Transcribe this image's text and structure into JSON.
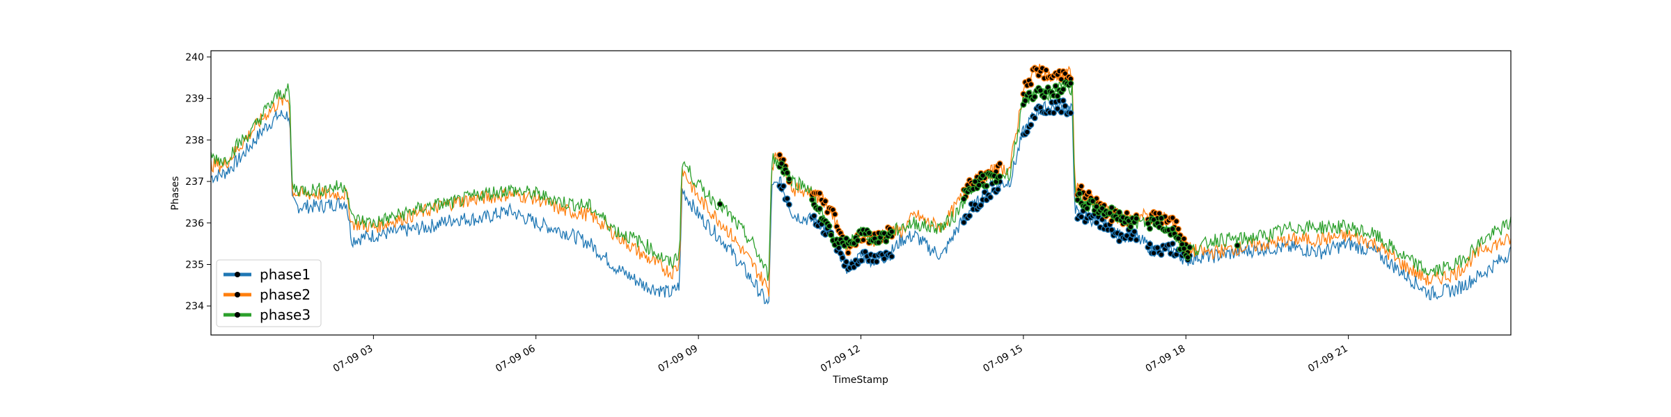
{
  "chart_data": {
    "type": "line",
    "title": "",
    "xlabel": "TimeStamp",
    "ylabel": "Phases",
    "x_unit": "hours since 07-09 00:00",
    "xlim": [
      0,
      24
    ],
    "ylim": [
      233.3,
      240.15
    ],
    "grid": false,
    "legend_position": "lower-left",
    "x_ticks": [
      {
        "x": 3,
        "label": "07-09 03"
      },
      {
        "x": 6,
        "label": "07-09 06"
      },
      {
        "x": 9,
        "label": "07-09 09"
      },
      {
        "x": 12,
        "label": "07-09 12"
      },
      {
        "x": 15,
        "label": "07-09 15"
      },
      {
        "x": 18,
        "label": "07-09 18"
      },
      {
        "x": 21,
        "label": "07-09 21"
      }
    ],
    "y_ticks": [
      234,
      235,
      236,
      237,
      238,
      239,
      240
    ],
    "x": [
      0,
      0.25,
      0.5,
      0.75,
      1,
      1.25,
      1.45,
      1.5,
      1.6,
      2,
      2.5,
      2.6,
      3,
      3.5,
      4,
      4.5,
      5,
      5.5,
      6,
      6.5,
      7,
      7.5,
      8,
      8.5,
      8.65,
      8.7,
      9,
      9.5,
      10,
      10.3,
      10.35,
      10.5,
      10.75,
      11,
      11.25,
      11.5,
      11.75,
      12,
      12.25,
      12.5,
      12.75,
      13,
      13.25,
      13.5,
      13.75,
      14,
      14.25,
      14.5,
      14.75,
      15,
      15.25,
      15.5,
      15.75,
      15.9,
      15.95,
      16,
      16.25,
      16.5,
      16.75,
      17,
      17.25,
      17.5,
      17.75,
      18,
      18.25,
      18.5,
      19,
      19.5,
      20,
      20.5,
      21,
      21.5,
      22,
      22.5,
      23,
      23.5,
      24
    ],
    "series": [
      {
        "name": "phase1",
        "color": "#1f77b4",
        "values": [
          237.1,
          237.2,
          237.5,
          237.9,
          238.3,
          238.6,
          238.6,
          236.5,
          236.4,
          236.4,
          236.5,
          235.6,
          235.7,
          235.8,
          235.9,
          236.1,
          236.1,
          236.3,
          236.0,
          235.8,
          235.5,
          234.9,
          234.5,
          234.3,
          234.5,
          236.8,
          236.2,
          235.5,
          234.6,
          234.0,
          236.8,
          237.0,
          236.2,
          236.1,
          236.0,
          235.6,
          234.9,
          235.2,
          235.1,
          235.2,
          235.6,
          235.7,
          235.4,
          235.2,
          235.8,
          236.3,
          236.6,
          236.9,
          237.0,
          238.2,
          238.7,
          238.8,
          238.8,
          238.7,
          236.4,
          236.2,
          236.1,
          236.0,
          235.7,
          235.7,
          235.5,
          235.3,
          235.4,
          235.1,
          235.2,
          235.2,
          235.3,
          235.4,
          235.4,
          235.3,
          235.5,
          235.3,
          234.8,
          234.3,
          234.4,
          234.8,
          235.3
        ]
      },
      {
        "name": "phase2",
        "color": "#ff7f0e",
        "values": [
          237.4,
          237.4,
          237.8,
          238.2,
          238.6,
          238.9,
          239.0,
          236.8,
          236.7,
          236.7,
          236.7,
          236.0,
          235.9,
          236.1,
          236.3,
          236.5,
          236.6,
          236.7,
          236.6,
          236.3,
          236.2,
          235.7,
          235.2,
          234.8,
          235.0,
          237.3,
          236.6,
          235.9,
          235.0,
          234.4,
          237.4,
          237.7,
          236.8,
          236.8,
          236.6,
          236.2,
          235.4,
          235.7,
          235.6,
          235.8,
          235.8,
          236.2,
          236.0,
          235.9,
          236.4,
          236.9,
          237.1,
          237.3,
          237.3,
          239.2,
          239.7,
          239.5,
          239.6,
          239.6,
          236.9,
          236.8,
          236.6,
          236.3,
          236.1,
          236.1,
          236.2,
          236.1,
          236.1,
          235.4,
          235.3,
          235.3,
          235.4,
          235.5,
          235.6,
          235.6,
          235.7,
          235.5,
          235.0,
          234.6,
          234.8,
          235.4,
          235.6
        ]
      },
      {
        "name": "phase3",
        "color": "#2ca02c",
        "values": [
          237.6,
          237.5,
          237.9,
          238.2,
          238.7,
          239.1,
          239.2,
          236.9,
          236.8,
          236.8,
          236.9,
          236.1,
          236.0,
          236.2,
          236.4,
          236.5,
          236.7,
          236.8,
          236.7,
          236.5,
          236.4,
          235.8,
          235.5,
          235.0,
          235.3,
          237.5,
          236.9,
          236.3,
          235.5,
          234.7,
          237.6,
          237.4,
          237.0,
          236.9,
          236.3,
          235.6,
          235.5,
          235.8,
          235.6,
          235.7,
          235.9,
          236.0,
          235.9,
          235.9,
          236.2,
          236.8,
          237.0,
          237.1,
          237.2,
          238.9,
          239.2,
          239.1,
          239.3,
          239.2,
          236.8,
          236.6,
          236.4,
          236.3,
          236.2,
          236.0,
          236.0,
          236.0,
          235.8,
          235.3,
          235.4,
          235.6,
          235.6,
          235.7,
          235.9,
          235.9,
          235.9,
          235.7,
          235.2,
          234.8,
          235.0,
          235.6,
          236.0
        ]
      }
    ],
    "anomaly_markers": {
      "description": "black points highlighted on the series",
      "ranges_hours": [
        [
          10.5,
          10.7
        ],
        [
          11.1,
          12.6
        ],
        [
          13.9,
          14.6
        ],
        [
          15.0,
          15.9
        ],
        [
          16.0,
          17.1
        ],
        [
          17.3,
          18.1
        ]
      ],
      "isolated_hours": [
        9.4,
        18.95
      ]
    }
  }
}
